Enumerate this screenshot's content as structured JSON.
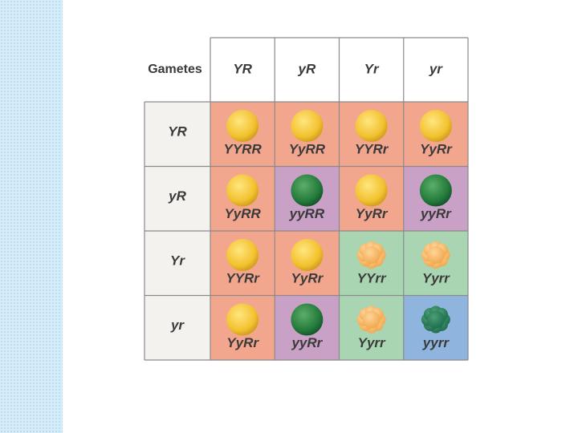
{
  "header_label": "Gametes",
  "column_gametes": [
    "YR",
    "yR",
    "Yr",
    "yr"
  ],
  "row_gametes": [
    "YR",
    "yR",
    "Yr",
    "yr"
  ],
  "cells": [
    [
      "YYRR",
      "YyRR",
      "YYRr",
      "YyRr"
    ],
    [
      "YyRR",
      "yyRR",
      "YyRr",
      "yyRr"
    ],
    [
      "YYRr",
      "YyRr",
      "YYrr",
      "Yyrr"
    ],
    [
      "YyRr",
      "yyRr",
      "Yyrr",
      "yyrr"
    ]
  ]
}
